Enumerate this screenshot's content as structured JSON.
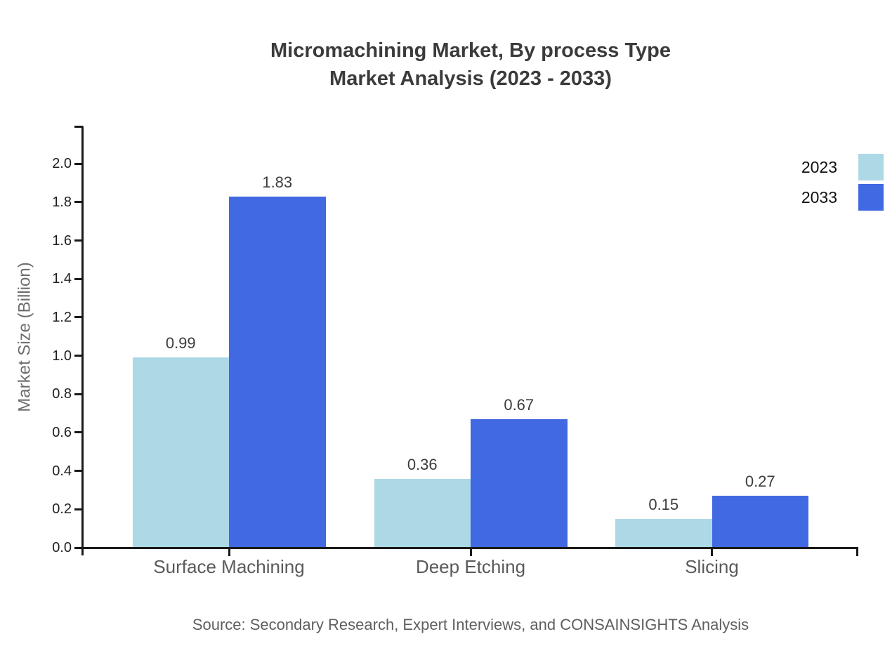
{
  "title": {
    "line1": "Micromachining Market, By process Type",
    "line2": "Market Analysis (2023 - 2033)"
  },
  "source": "Source: Secondary Research, Expert Interviews, and CONSAINSIGHTS Analysis",
  "chart_data": {
    "type": "bar",
    "title": "Micromachining Market, By process Type Market Analysis (2023 - 2033)",
    "categories": [
      "Surface Machining",
      "Deep Etching",
      "Slicing"
    ],
    "series": [
      {
        "name": "2023",
        "color": "#ADD8E6",
        "values": [
          0.99,
          0.36,
          0.15
        ]
      },
      {
        "name": "2033",
        "color": "#4169E1",
        "values": [
          1.83,
          0.67,
          0.27
        ]
      }
    ],
    "value_labels": [
      [
        "0.99",
        "0.36",
        "0.15"
      ],
      [
        "1.83",
        "0.67",
        "0.27"
      ]
    ],
    "xlabel": "",
    "ylabel": "Market Size (Billion)",
    "ylim": [
      0.0,
      2.0
    ],
    "yticks": [
      "0.0",
      "0.2",
      "0.4",
      "0.6",
      "0.8",
      "1.0",
      "1.2",
      "1.4",
      "1.6",
      "1.8",
      "2.0"
    ],
    "grid": false,
    "legend_position": "upper-right-outside"
  }
}
